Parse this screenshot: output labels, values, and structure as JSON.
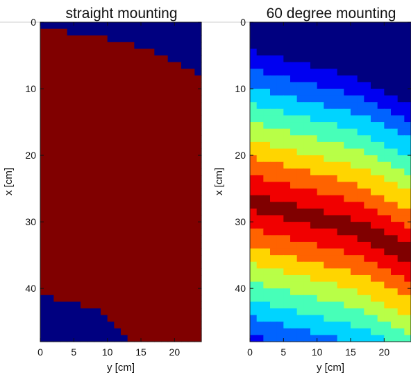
{
  "chart_data": [
    {
      "type": "heatmap",
      "title": "straight mounting",
      "xlabel": "y [cm]",
      "ylabel": "x [cm]",
      "x_ticks": [
        "0",
        "5",
        "10",
        "15",
        "20"
      ],
      "y_ticks": [
        "0",
        "10",
        "20",
        "30",
        "40"
      ],
      "xlim": [
        0,
        24
      ],
      "ylim": [
        48,
        0
      ],
      "grid": false,
      "colormap": "jet",
      "value_range": [
        0,
        1
      ],
      "pattern": "binary",
      "upper_boundary_x_at_y": {
        "y": [
          0,
          8,
          16,
          24
        ],
        "x": [
          1,
          2,
          4,
          8
        ]
      },
      "lower_boundary_x_at_y": {
        "y": [
          0,
          8,
          13,
          24
        ],
        "x": [
          41,
          43,
          48,
          48
        ]
      },
      "inside_value": 1,
      "outside_value": 0,
      "colors": {
        "inside": "#7f0000",
        "outside": "#00008f"
      }
    },
    {
      "type": "heatmap",
      "title": "60 degree mounting",
      "xlabel": "y [cm]",
      "ylabel": "x [cm]",
      "x_ticks": [
        "0",
        "5",
        "10",
        "15",
        "20"
      ],
      "y_ticks": [
        "0",
        "10",
        "20",
        "30",
        "40"
      ],
      "xlim": [
        0,
        24
      ],
      "ylim": [
        48,
        0
      ],
      "grid": false,
      "colormap": "jet",
      "value_range": [
        0,
        1
      ],
      "pattern": "diagonal bands",
      "peak_ridge_x_at_y": {
        "y": [
          0,
          8,
          16,
          24
        ],
        "x": [
          27,
          29,
          31,
          35
        ]
      },
      "band_halfwidth_cm": 24,
      "colors": {
        "low": "#00008f",
        "high": "#7f0000"
      }
    }
  ]
}
